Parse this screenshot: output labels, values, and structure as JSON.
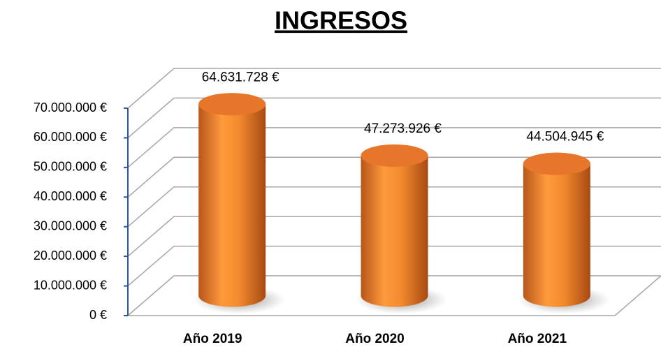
{
  "chart_data": {
    "type": "bar",
    "title": "INGRESOS",
    "categories": [
      "Año 2019",
      "Año 2020",
      "Año 2021"
    ],
    "values": [
      64631728,
      47273926,
      44504945
    ],
    "value_labels": [
      "64.631.728 €",
      "47.273.926 €",
      "44.504.945 €"
    ],
    "color": "#f28a2e",
    "ylim": [
      0,
      70000000
    ],
    "yticks": [
      {
        "value": 0,
        "label": "0 €"
      },
      {
        "value": 10000000,
        "label": "10.000.000 €"
      },
      {
        "value": 20000000,
        "label": "20.000.000 €"
      },
      {
        "value": 30000000,
        "label": "30.000.000 €"
      },
      {
        "value": 40000000,
        "label": "40.000.000 €"
      },
      {
        "value": 50000000,
        "label": "50.000.000 €"
      },
      {
        "value": 60000000,
        "label": "60.000.000 €"
      },
      {
        "value": 70000000,
        "label": "70.000.000 €"
      }
    ],
    "grid": true
  }
}
